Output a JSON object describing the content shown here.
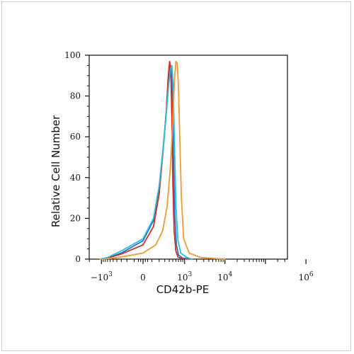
{
  "chart_data": {
    "type": "line",
    "xlabel": "CD42b-PE",
    "ylabel": "Relative Cell Number",
    "x_scale": "biexponential",
    "ylim": [
      0,
      100
    ],
    "y_ticks": [
      "0",
      "20",
      "40",
      "60",
      "80",
      "100"
    ],
    "x_ticks": [
      {
        "base": "−10",
        "exp": "3"
      },
      {
        "base": "0",
        "exp": ""
      },
      {
        "base": "10",
        "exp": "3"
      },
      {
        "base": "10",
        "exp": "4"
      },
      {
        "base": "10",
        "exp": "6"
      }
    ],
    "x_tick_positions": [
      -1000,
      0,
      1000,
      10000,
      1000000
    ],
    "grid": false,
    "legend": "none",
    "series": [
      {
        "color": "#2a6fd8",
        "x": [
          -1100,
          -700,
          -300,
          0,
          120,
          200,
          270,
          330,
          380,
          420,
          460,
          490,
          520,
          560,
          620,
          700,
          900,
          1500
        ],
        "y": [
          0,
          0.5,
          3,
          9,
          19,
          35,
          55,
          72,
          86,
          95,
          94,
          80,
          50,
          22,
          7,
          2,
          0.5,
          0
        ]
      },
      {
        "color": "#d92a1c",
        "x": [
          -1100,
          -700,
          -300,
          0,
          120,
          200,
          270,
          330,
          370,
          410,
          440,
          470,
          500,
          540,
          600,
          680,
          850,
          1500
        ],
        "y": [
          0,
          0.5,
          2.5,
          7,
          16,
          32,
          54,
          72,
          88,
          97,
          93,
          70,
          38,
          14,
          4,
          1,
          0.3,
          0
        ]
      },
      {
        "color": "#22c0e8",
        "x": [
          -1100,
          -700,
          -300,
          0,
          120,
          200,
          270,
          330,
          380,
          430,
          470,
          510,
          550,
          600,
          680,
          800,
          1100,
          1500
        ],
        "y": [
          0,
          0.8,
          4,
          10,
          20,
          36,
          55,
          71,
          84,
          93,
          95,
          86,
          58,
          26,
          9,
          3,
          1,
          0
        ]
      },
      {
        "color": "#f29a2e",
        "x": [
          -1100,
          -600,
          -200,
          0,
          150,
          260,
          350,
          430,
          500,
          550,
          600,
          650,
          700,
          760,
          830,
          950,
          1300,
          2500,
          10000
        ],
        "y": [
          0,
          0.3,
          1.5,
          3,
          7,
          14,
          26,
          45,
          68,
          87,
          97,
          96,
          84,
          58,
          30,
          10,
          3,
          0.8,
          0
        ]
      }
    ]
  }
}
